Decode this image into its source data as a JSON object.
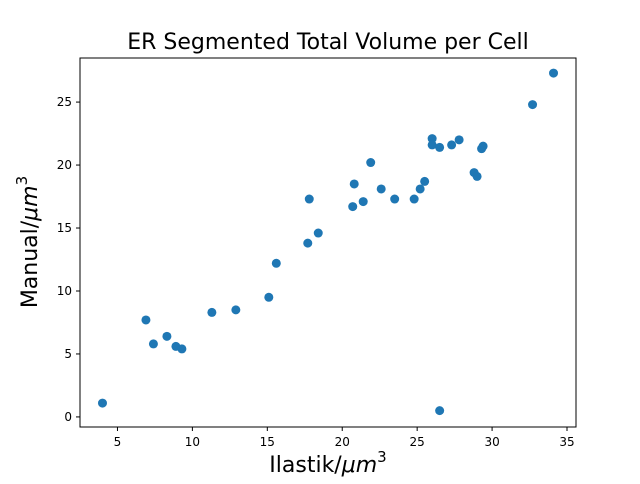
{
  "chart_data": {
    "type": "scatter",
    "title": "ER Segmented Total Volume per Cell",
    "xlabel": "Ilastik/",
    "ylabel": "Manual/",
    "unit": "μm",
    "unit_exp": "3",
    "xlim": [
      2.5,
      35.6
    ],
    "ylim": [
      -0.8,
      28.5
    ],
    "xticks": [
      5,
      10,
      15,
      20,
      25,
      30,
      35
    ],
    "yticks": [
      0,
      5,
      10,
      15,
      20,
      25
    ],
    "marker_color": "#1f77b4",
    "grid": false,
    "series": [
      {
        "x": [
          4.0,
          6.9,
          7.4,
          8.3,
          8.9,
          9.3,
          11.3,
          12.9,
          15.1,
          15.6,
          17.7,
          17.8,
          18.4,
          20.7,
          20.8,
          21.4,
          21.9,
          22.6,
          23.5,
          24.8,
          25.2,
          25.5,
          26.0,
          26.0,
          26.5,
          26.5,
          27.3,
          27.8,
          28.8,
          29.0,
          29.3,
          29.4,
          32.7,
          34.1
        ],
        "y": [
          1.1,
          7.7,
          5.8,
          6.4,
          5.6,
          5.4,
          8.3,
          8.5,
          9.5,
          12.2,
          13.8,
          17.3,
          14.6,
          16.7,
          18.5,
          17.1,
          20.2,
          18.1,
          17.3,
          17.3,
          18.1,
          18.7,
          22.1,
          21.6,
          21.4,
          0.5,
          21.6,
          22.0,
          19.4,
          19.1,
          21.3,
          21.5,
          24.8,
          27.3
        ]
      }
    ]
  }
}
